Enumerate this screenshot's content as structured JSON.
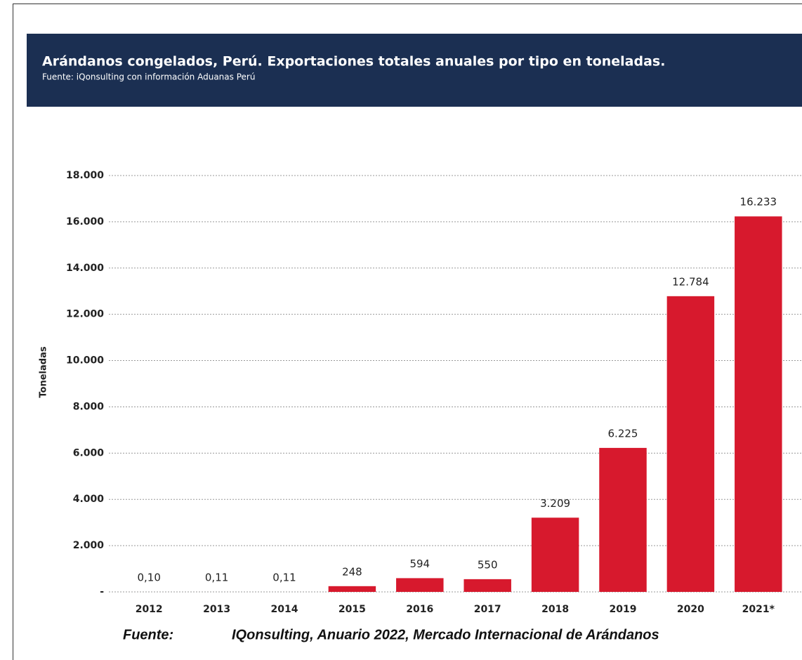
{
  "chart_data": {
    "type": "bar",
    "title": "Arándanos congelados, Perú. Exportaciones totales anuales por tipo en toneladas.",
    "subtitle": "Fuente: iQonsulting con información Aduanas Perú",
    "y_label": "Toneladas",
    "categories": [
      "2012",
      "2013",
      "2014",
      "2015",
      "2016",
      "2017",
      "2018",
      "2019",
      "2020",
      "2021*"
    ],
    "values": [
      0.1,
      0.11,
      0.11,
      248,
      594,
      550,
      3209,
      6225,
      12784,
      16233
    ],
    "value_labels": [
      "0,10",
      "0,11",
      "0,11",
      "248",
      "594",
      "550",
      "3.209",
      "6.225",
      "12.784",
      "16.233"
    ],
    "color": "#d7192d",
    "ylim": [
      0,
      18000
    ],
    "yticks": [
      {
        "value": 0,
        "label": "-"
      },
      {
        "value": 2000,
        "label": "2.000"
      },
      {
        "value": 4000,
        "label": "4.000"
      },
      {
        "value": 6000,
        "label": "6.000"
      },
      {
        "value": 8000,
        "label": "8.000"
      },
      {
        "value": 10000,
        "label": "10.000"
      },
      {
        "value": 12000,
        "label": "12.000"
      },
      {
        "value": 14000,
        "label": "14.000"
      },
      {
        "value": 16000,
        "label": "16.000"
      },
      {
        "value": 18000,
        "label": "18.000"
      }
    ],
    "grid": true,
    "source_label": "Fuente:",
    "source": "IQonsulting, Anuario 2022, Mercado Internacional de Arándanos"
  }
}
